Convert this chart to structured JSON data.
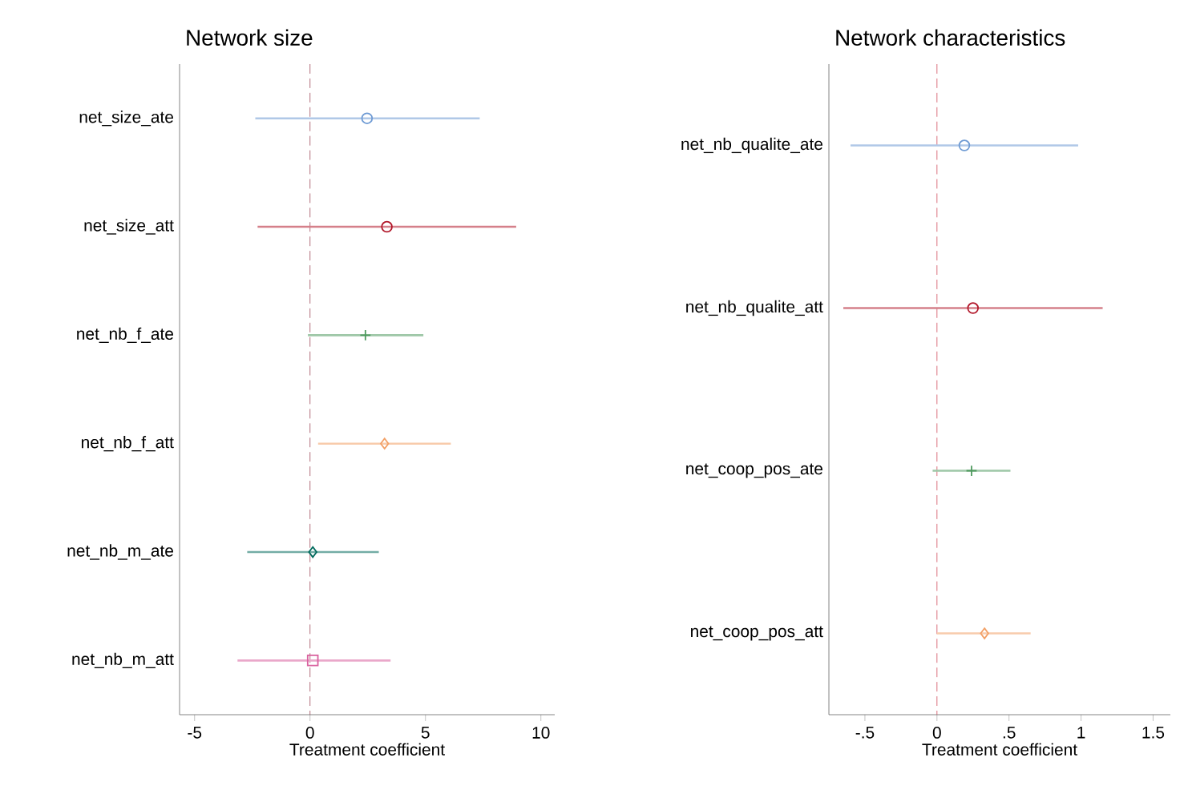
{
  "chart_data": [
    {
      "type": "scatter",
      "orientation": "horizontal",
      "title": "Network size",
      "xlabel": "Treatment coefficient",
      "categories": [
        "net_size_ate",
        "net_size_att",
        "net_nb_f_ate",
        "net_nb_f_att",
        "net_nb_m_ate",
        "net_nb_m_att"
      ],
      "xlim": [
        -5.65,
        10.6
      ],
      "xticks": [
        -5,
        0,
        5,
        10
      ],
      "grid": false,
      "ref_lines": [
        {
          "axis": "x",
          "value": 0,
          "color": "#9e4a5a",
          "line_style": "dashed"
        }
      ],
      "series": [
        {
          "color": "#6f9bd4",
          "marker": "circle",
          "values": [
            2.47,
            null,
            null,
            null,
            null,
            null
          ],
          "errors": [
            [
              -2.37,
              7.35
            ],
            null,
            null,
            null,
            null,
            null
          ]
        },
        {
          "color": "#b2182b",
          "marker": "circle",
          "values": [
            null,
            3.33,
            null,
            null,
            null,
            null
          ],
          "errors": [
            null,
            [
              -2.27,
              8.93
            ],
            null,
            null,
            null,
            null
          ]
        },
        {
          "color": "#4f9a5f",
          "marker": "cross",
          "values": [
            null,
            null,
            2.4,
            null,
            null,
            null
          ],
          "errors": [
            null,
            null,
            [
              -0.09,
              4.91
            ],
            null,
            null,
            null
          ]
        },
        {
          "color": "#f2a066",
          "marker": "diamond",
          "values": [
            null,
            null,
            null,
            3.23,
            null,
            null
          ],
          "errors": [
            null,
            null,
            null,
            [
              0.35,
              6.1
            ],
            null,
            null
          ]
        },
        {
          "color": "#00695c",
          "marker": "diamond",
          "values": [
            null,
            null,
            null,
            null,
            0.12,
            null
          ],
          "errors": [
            null,
            null,
            null,
            null,
            [
              -2.72,
              2.98
            ],
            null
          ]
        },
        {
          "color": "#d9619f",
          "marker": "square",
          "values": [
            null,
            null,
            null,
            null,
            null,
            0.12
          ],
          "errors": [
            null,
            null,
            null,
            null,
            null,
            [
              -3.14,
              3.49
            ]
          ]
        }
      ]
    },
    {
      "type": "scatter",
      "orientation": "horizontal",
      "title": "Network characteristics",
      "xlabel": "Treatment coefficient",
      "categories": [
        "net_nb_qualite_ate",
        "net_nb_qualite_att",
        "net_coop_pos_ate",
        "net_coop_pos_att"
      ],
      "xlim": [
        -0.75,
        1.62
      ],
      "xticks": [
        {
          "value": -0.5,
          "label": "-.5"
        },
        0,
        {
          "value": 0.5,
          "label": ".5"
        },
        1,
        1.5
      ],
      "grid": false,
      "ref_lines": [
        {
          "axis": "x",
          "value": 0,
          "color": "#d04a5a",
          "line_style": "dashed"
        }
      ],
      "series": [
        {
          "color": "#6f9bd4",
          "marker": "circle",
          "values": [
            0.19,
            null,
            null,
            null
          ],
          "errors": [
            [
              -0.6,
              0.98
            ],
            null,
            null,
            null
          ]
        },
        {
          "color": "#b2182b",
          "marker": "circle",
          "values": [
            null,
            0.25,
            null,
            null
          ],
          "errors": [
            null,
            [
              -0.65,
              1.15
            ],
            null,
            null
          ]
        },
        {
          "color": "#4f9a5f",
          "marker": "cross",
          "values": [
            null,
            null,
            0.24,
            null
          ],
          "errors": [
            null,
            null,
            [
              -0.03,
              0.51
            ],
            null
          ]
        },
        {
          "color": "#f2a066",
          "marker": "diamond",
          "values": [
            null,
            null,
            null,
            0.33
          ],
          "errors": [
            null,
            null,
            null,
            [
              0.0,
              0.65
            ]
          ]
        }
      ]
    }
  ]
}
